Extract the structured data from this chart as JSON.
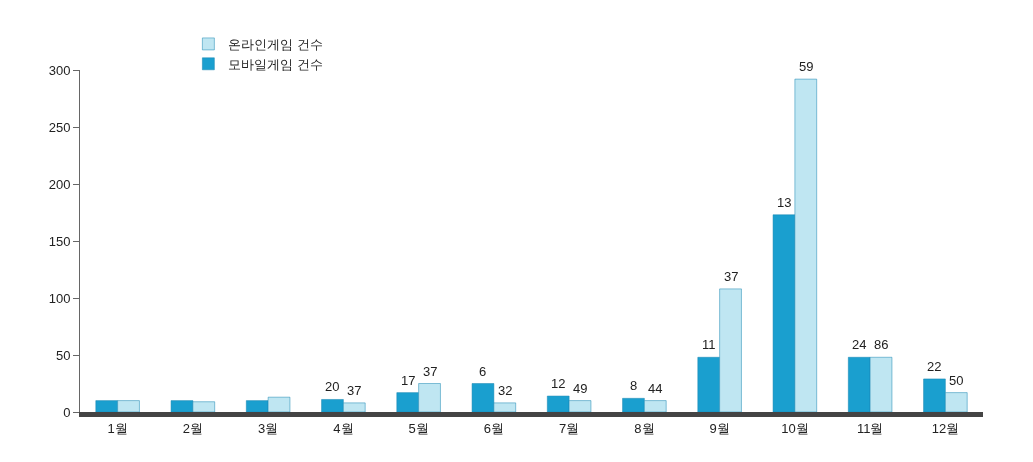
{
  "chart_data": {
    "type": "bar",
    "categories": [
      "1월",
      "2월",
      "3월",
      "4월",
      "5월",
      "6월",
      "7월",
      "8월",
      "9월",
      "10월",
      "11월",
      "12월"
    ],
    "series": [
      {
        "name": "모바일게임 건수",
        "color": "#1a9fcf",
        "values": [
          10,
          10,
          10,
          11,
          17,
          25,
          14,
          12,
          48,
          173,
          48,
          29
        ]
      },
      {
        "name": "온라인게임 건수",
        "color": "#bfe6f2",
        "values": [
          10,
          9,
          13,
          8,
          25,
          8,
          10,
          10,
          108,
          292,
          48,
          17
        ]
      }
    ],
    "annotations": [
      {
        "text": "20",
        "x": "4월",
        "y": 11
      },
      {
        "text": "37",
        "x": "4월",
        "y": 8
      },
      {
        "text": "17",
        "x": "5월",
        "y": 17
      },
      {
        "text": "37",
        "x": "5월",
        "y": 25
      },
      {
        "text": "6",
        "x": "6월",
        "y": 25
      },
      {
        "text": "32",
        "x": "6월",
        "y": 8
      },
      {
        "text": "12",
        "x": "7월",
        "y": 14
      },
      {
        "text": "49",
        "x": "7월",
        "y": 10
      },
      {
        "text": "8",
        "x": "8월",
        "y": 12
      },
      {
        "text": "44",
        "x": "8월",
        "y": 10
      },
      {
        "text": "11",
        "x": "9월",
        "y": 48
      },
      {
        "text": "37",
        "x": "9월",
        "y": 108
      },
      {
        "text": "13",
        "x": "10월",
        "y": 173
      },
      {
        "text": "59",
        "x": "10월",
        "y": 292
      },
      {
        "text": "24",
        "x": "11월",
        "y": 48
      },
      {
        "text": "86",
        "x": "11월",
        "y": 48
      },
      {
        "text": "22",
        "x": "12월",
        "y": 29
      },
      {
        "text": "50",
        "x": "12월",
        "y": 17
      }
    ],
    "ylim": [
      0,
      300
    ],
    "yticks": [
      0,
      50,
      100,
      150,
      200,
      250,
      300
    ],
    "grid": false,
    "legend": "top left"
  }
}
